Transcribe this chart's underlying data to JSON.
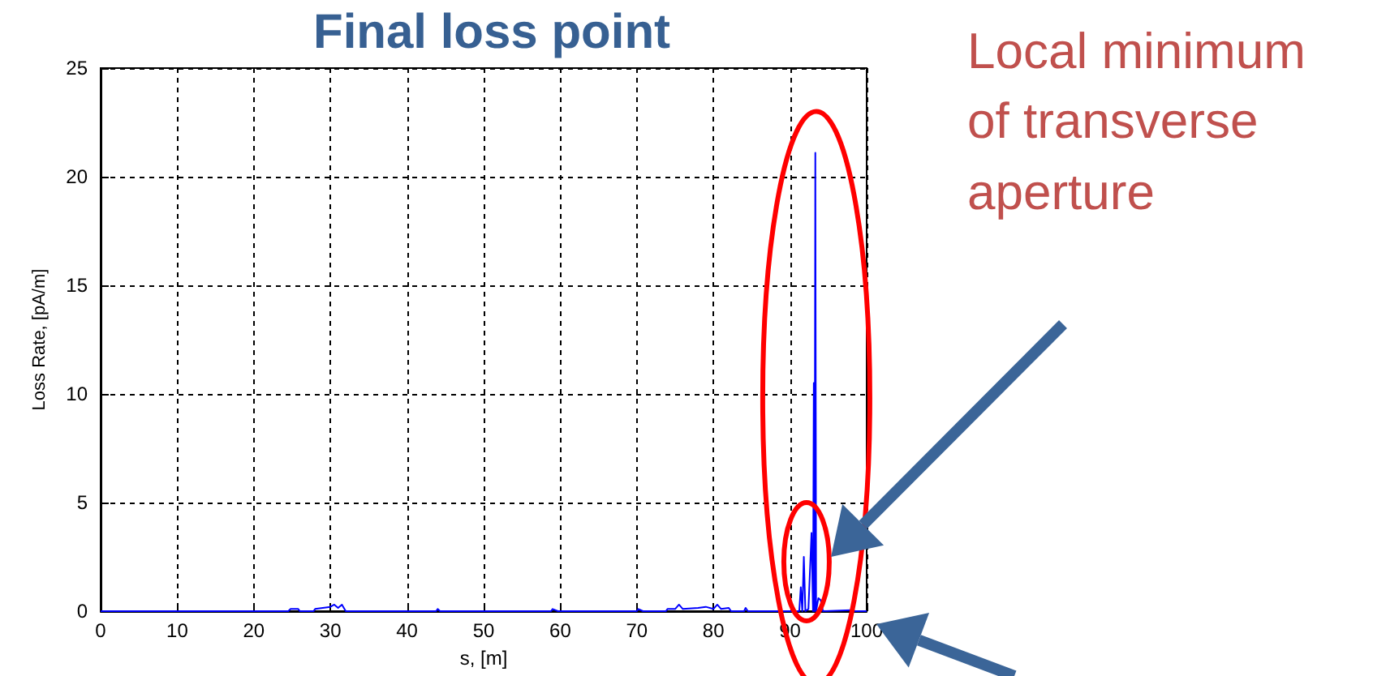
{
  "chart_data": {
    "type": "line",
    "title": "Final loss point",
    "xlabel": "s, [m]",
    "ylabel": "Loss Rate, [pA/m]",
    "annotations": [
      "Local minimum of transverse aperture"
    ],
    "series": [
      {
        "color": "#0000ff",
        "x": [
          0,
          24.5,
          24.8,
          25.8,
          26,
          27.8,
          28,
          29,
          30,
          30.5,
          31,
          31.5,
          32,
          43.8,
          44,
          44.3,
          58.8,
          59,
          59.7,
          70,
          70.2,
          70.8,
          73.8,
          74,
          75,
          75.5,
          76,
          78,
          79,
          80,
          80.5,
          81,
          82,
          82.3,
          84,
          84.2,
          84.5,
          91.2,
          91.4,
          91.6,
          91.8,
          92,
          92.4,
          92.8,
          93,
          93.1,
          93.2,
          93.3,
          93.4,
          93.7,
          94,
          94.3,
          98,
          98.5,
          100
        ],
        "values": [
          0,
          0,
          0.1,
          0.1,
          0,
          0,
          0.1,
          0.15,
          0.2,
          0.3,
          0.15,
          0.3,
          0,
          0,
          0.1,
          0,
          0,
          0.1,
          0,
          0,
          0.1,
          0,
          0,
          0.1,
          0.1,
          0.3,
          0.1,
          0.15,
          0.2,
          0.1,
          0.3,
          0.1,
          0.15,
          0,
          0,
          0.15,
          0,
          0,
          1.1,
          0,
          2.5,
          0,
          0.1,
          3.6,
          0,
          10.5,
          0,
          21.1,
          0,
          0.6,
          0.5,
          0,
          0.05,
          0,
          0
        ]
      }
    ],
    "xlim": [
      0,
      100
    ],
    "xticks": [
      0,
      10,
      20,
      30,
      40,
      50,
      60,
      70,
      80,
      90,
      100
    ],
    "ylim": [
      0,
      25
    ],
    "yticks": [
      0,
      5,
      10,
      15,
      20,
      25
    ],
    "grid": true,
    "marker": "none",
    "line_style": "solid"
  }
}
